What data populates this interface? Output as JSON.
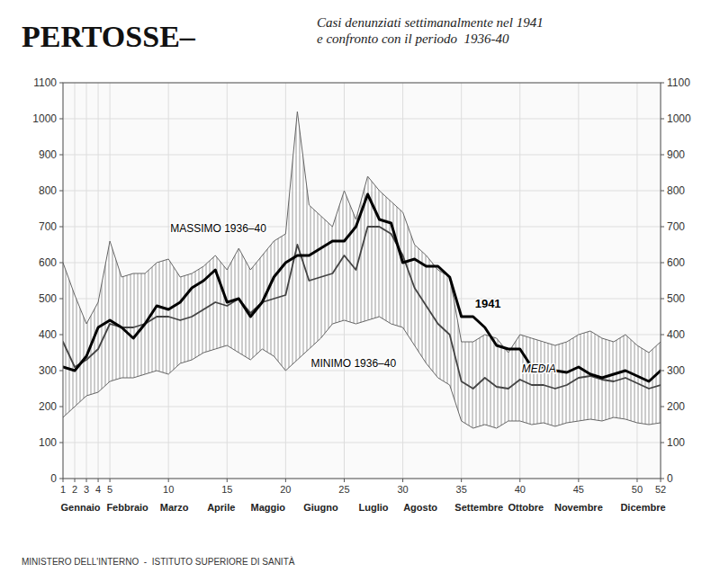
{
  "chart_data": {
    "type": "line",
    "title": "PERTOSSE–",
    "subtitle": "Casi denunziati settimanalmente nel 1941\ne confronto con il periodo  1936-40",
    "footer": "MINISTERO DELL'INTERNO  -  ISTITUTO SUPERIORE DI SANITÀ",
    "x": [
      1,
      2,
      3,
      4,
      5,
      6,
      7,
      8,
      9,
      10,
      11,
      12,
      13,
      14,
      15,
      16,
      17,
      18,
      19,
      20,
      21,
      22,
      23,
      24,
      25,
      26,
      27,
      28,
      29,
      30,
      31,
      32,
      33,
      34,
      35,
      36,
      37,
      38,
      39,
      40,
      41,
      42,
      43,
      44,
      45,
      46,
      47,
      48,
      49,
      50,
      51,
      52
    ],
    "series": [
      {
        "name": "MASSIMO 1936–40",
        "color": "#666666",
        "values": [
          600,
          510,
          430,
          490,
          660,
          560,
          570,
          570,
          600,
          610,
          560,
          570,
          590,
          620,
          580,
          640,
          580,
          620,
          660,
          680,
          1020,
          760,
          730,
          700,
          800,
          720,
          840,
          800,
          770,
          740,
          650,
          620,
          580,
          560,
          380,
          380,
          400,
          390,
          350,
          400,
          390,
          380,
          370,
          380,
          400,
          410,
          390,
          380,
          400,
          370,
          350,
          380
        ]
      },
      {
        "name": "MINIMO 1936–40",
        "color": "#666666",
        "values": [
          170,
          200,
          230,
          240,
          270,
          280,
          280,
          290,
          300,
          290,
          320,
          330,
          350,
          360,
          370,
          350,
          330,
          360,
          340,
          300,
          330,
          360,
          390,
          430,
          440,
          430,
          440,
          450,
          430,
          420,
          370,
          320,
          280,
          260,
          160,
          140,
          150,
          140,
          160,
          160,
          150,
          155,
          145,
          155,
          160,
          165,
          160,
          170,
          165,
          155,
          150,
          155
        ]
      },
      {
        "name": "MEDIA",
        "color": "#444444",
        "values": [
          380,
          310,
          330,
          360,
          430,
          420,
          420,
          430,
          450,
          450,
          440,
          450,
          470,
          490,
          480,
          500,
          460,
          490,
          500,
          510,
          650,
          550,
          560,
          570,
          620,
          580,
          700,
          700,
          680,
          620,
          530,
          480,
          430,
          400,
          270,
          250,
          280,
          255,
          250,
          275,
          260,
          260,
          250,
          260,
          280,
          285,
          275,
          270,
          280,
          265,
          250,
          260
        ]
      },
      {
        "name": "1941",
        "color": "#000000",
        "values": [
          310,
          300,
          340,
          420,
          440,
          420,
          390,
          430,
          480,
          470,
          490,
          530,
          550,
          580,
          490,
          500,
          450,
          490,
          560,
          600,
          620,
          620,
          640,
          660,
          660,
          700,
          790,
          720,
          710,
          600,
          610,
          590,
          590,
          560,
          450,
          450,
          420,
          370,
          360,
          360,
          310,
          310,
          300,
          295,
          310,
          290,
          280,
          290,
          300,
          285,
          270,
          300
        ]
      }
    ],
    "xlim": [
      1,
      52
    ],
    "xticks": [
      1,
      2,
      3,
      4,
      5,
      10,
      15,
      20,
      25,
      30,
      35,
      40,
      45,
      50,
      52
    ],
    "ylim": [
      0,
      1100
    ],
    "yticks": [
      0,
      100,
      200,
      300,
      400,
      500,
      600,
      700,
      800,
      900,
      1000,
      1100
    ],
    "y2lim": [
      0,
      1100
    ],
    "y2ticks": [
      0,
      100,
      200,
      300,
      400,
      500,
      600,
      700,
      800,
      900,
      1000,
      1100
    ],
    "month_labels": [
      {
        "x": 2.5,
        "label": "Gennaio"
      },
      {
        "x": 6.5,
        "label": "Febbraio"
      },
      {
        "x": 10.5,
        "label": "Marzo"
      },
      {
        "x": 14.5,
        "label": "Aprile"
      },
      {
        "x": 18.5,
        "label": "Maggio"
      },
      {
        "x": 23.0,
        "label": "Giugno"
      },
      {
        "x": 27.5,
        "label": "Luglio"
      },
      {
        "x": 31.5,
        "label": "Agosto"
      },
      {
        "x": 36.5,
        "label": "Settembre"
      },
      {
        "x": 40.5,
        "label": "Ottobre"
      },
      {
        "x": 45.0,
        "label": "Novembre"
      },
      {
        "x": 50.5,
        "label": "Dicembre"
      }
    ],
    "grid": true
  }
}
